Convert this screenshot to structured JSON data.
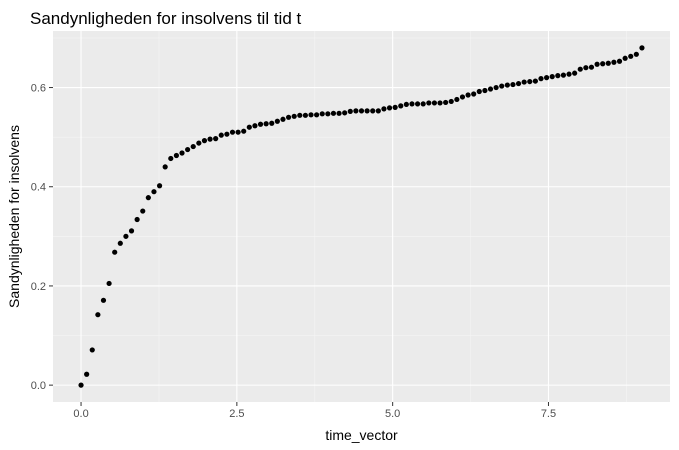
{
  "chart_data": {
    "type": "scatter",
    "title": "Sandynligheden for insolvens til tid t",
    "xlabel": "time_vector",
    "ylabel": "Sandynligheden for insolvens",
    "xlim": [
      -0.45,
      9.45
    ],
    "ylim": [
      -0.034,
      0.714
    ],
    "x_ticks": [
      0.0,
      2.5,
      5.0,
      7.5
    ],
    "x_tick_labels": [
      "0.0",
      "2.5",
      "5.0",
      "7.5"
    ],
    "y_ticks": [
      0.0,
      0.2,
      0.4,
      0.6
    ],
    "y_tick_labels": [
      "0.0",
      "0.2",
      "0.4",
      "0.6"
    ],
    "grid": true,
    "legend": "none",
    "colors": {
      "panel": "#ebebeb",
      "grid_major": "#ffffff",
      "grid_minor": "#f5f5f5",
      "point": "#000000"
    },
    "series": [
      {
        "x": [
          0.0,
          0.09,
          0.18,
          0.27,
          0.36,
          0.45,
          0.54,
          0.63,
          0.72,
          0.81,
          0.9,
          0.99,
          1.08,
          1.17,
          1.26,
          1.35,
          1.44,
          1.53,
          1.62,
          1.71,
          1.8,
          1.89,
          1.98,
          2.07,
          2.16,
          2.25,
          2.34,
          2.43,
          2.52,
          2.61,
          2.7,
          2.79,
          2.88,
          2.97,
          3.06,
          3.15,
          3.24,
          3.33,
          3.42,
          3.51,
          3.6,
          3.69,
          3.78,
          3.87,
          3.96,
          4.05,
          4.14,
          4.23,
          4.32,
          4.41,
          4.5,
          4.59,
          4.68,
          4.77,
          4.86,
          4.95,
          5.04,
          5.13,
          5.22,
          5.31,
          5.4,
          5.49,
          5.58,
          5.67,
          5.76,
          5.85,
          5.94,
          6.03,
          6.12,
          6.21,
          6.3,
          6.39,
          6.48,
          6.57,
          6.66,
          6.75,
          6.84,
          6.93,
          7.02,
          7.11,
          7.2,
          7.29,
          7.38,
          7.47,
          7.56,
          7.65,
          7.74,
          7.83,
          7.92,
          8.01,
          8.1,
          8.19,
          8.28,
          8.37,
          8.46,
          8.55,
          8.64,
          8.73,
          8.82,
          8.91,
          9.0
        ],
        "y": [
          0.0,
          0.022,
          0.071,
          0.142,
          0.171,
          0.205,
          0.268,
          0.286,
          0.3,
          0.311,
          0.334,
          0.351,
          0.378,
          0.39,
          0.402,
          0.44,
          0.457,
          0.463,
          0.468,
          0.475,
          0.481,
          0.488,
          0.493,
          0.496,
          0.497,
          0.504,
          0.506,
          0.51,
          0.51,
          0.512,
          0.52,
          0.523,
          0.526,
          0.527,
          0.528,
          0.532,
          0.536,
          0.54,
          0.542,
          0.544,
          0.544,
          0.545,
          0.545,
          0.547,
          0.547,
          0.548,
          0.548,
          0.549,
          0.552,
          0.553,
          0.553,
          0.553,
          0.553,
          0.553,
          0.557,
          0.559,
          0.56,
          0.563,
          0.566,
          0.567,
          0.567,
          0.567,
          0.569,
          0.569,
          0.569,
          0.57,
          0.572,
          0.576,
          0.581,
          0.585,
          0.587,
          0.592,
          0.594,
          0.597,
          0.6,
          0.603,
          0.605,
          0.606,
          0.608,
          0.611,
          0.612,
          0.613,
          0.618,
          0.62,
          0.622,
          0.624,
          0.625,
          0.627,
          0.629,
          0.637,
          0.64,
          0.641,
          0.647,
          0.648,
          0.649,
          0.651,
          0.653,
          0.659,
          0.663,
          0.667,
          0.68
        ]
      }
    ]
  }
}
